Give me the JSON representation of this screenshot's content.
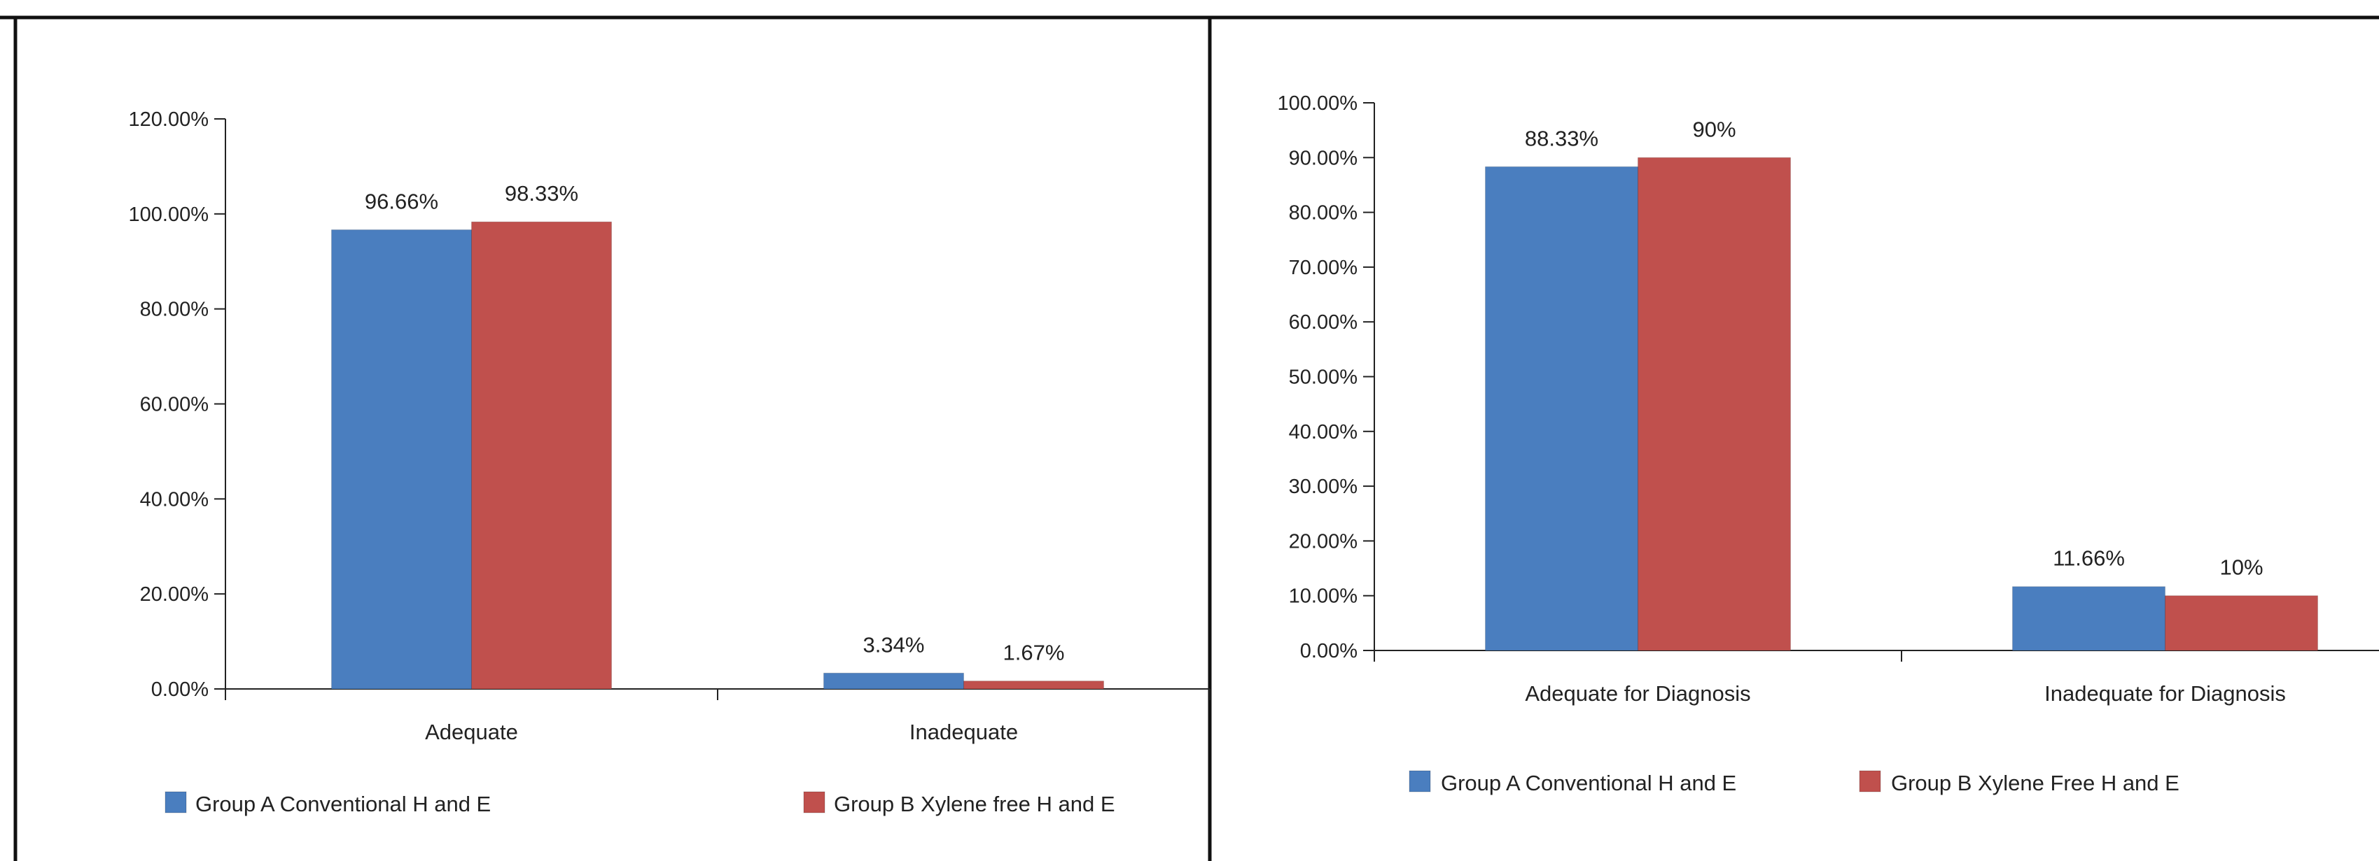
{
  "colors": {
    "series_a": "#4a7ebf",
    "series_b": "#c0504d",
    "axis": "#222222",
    "frame": "#111111"
  },
  "chart_data": [
    {
      "type": "bar",
      "categories": [
        "Adequate",
        "Inadequate"
      ],
      "series": [
        {
          "name": "Group A Conventional H and E",
          "values": [
            96.66,
            3.34
          ],
          "labels": [
            "96.66%",
            "3.34%"
          ]
        },
        {
          "name": "Group B Xylene free H and E",
          "values": [
            98.33,
            1.67
          ],
          "labels": [
            "98.33%",
            "1.67%"
          ]
        }
      ],
      "ylim": [
        0,
        120
      ],
      "yticks": [
        0,
        20,
        40,
        60,
        80,
        100,
        120
      ],
      "ytick_labels": [
        "0.00%",
        "20.00%",
        "40.00%",
        "60.00%",
        "80.00%",
        "100.00%",
        "120.00%"
      ],
      "grid": false,
      "legend": "bottom"
    },
    {
      "type": "bar",
      "categories": [
        "Adequate for Diagnosis",
        "Inadequate for Diagnosis"
      ],
      "series": [
        {
          "name": "Group A Conventional H and E",
          "values": [
            88.33,
            11.66
          ],
          "labels": [
            "88.33%",
            "11.66%"
          ]
        },
        {
          "name": "Group B Xylene Free H and E",
          "values": [
            90,
            10
          ],
          "labels": [
            "90%",
            "10%"
          ]
        }
      ],
      "ylim": [
        0,
        100
      ],
      "yticks": [
        0,
        10,
        20,
        30,
        40,
        50,
        60,
        70,
        80,
        90,
        100
      ],
      "ytick_labels": [
        "0.00%",
        "10.00%",
        "20.00%",
        "30.00%",
        "40.00%",
        "50.00%",
        "60.00%",
        "70.00%",
        "80.00%",
        "90.00%",
        "100.00%"
      ],
      "grid": false,
      "legend": "bottom"
    }
  ]
}
